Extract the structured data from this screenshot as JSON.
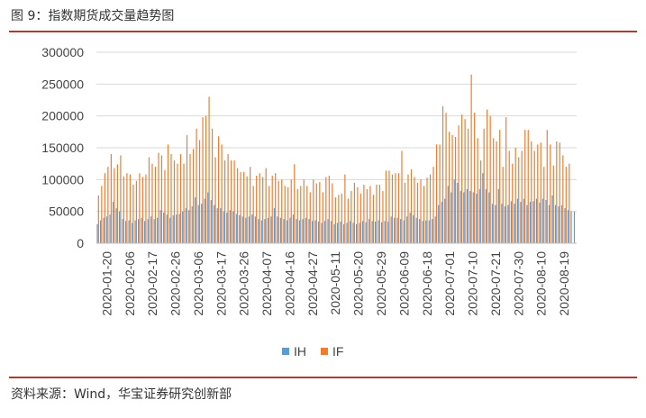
{
  "figure": {
    "title": "图 9：指数期货成交量趋势图",
    "source": "资料来源：Wind，华宝证券研究创新部"
  },
  "chart_data": {
    "type": "bar",
    "title": "",
    "xlabel": "",
    "ylabel": "",
    "ylim": [
      0,
      300000
    ],
    "yticks": [
      0,
      50000,
      100000,
      150000,
      200000,
      250000,
      300000
    ],
    "grid": true,
    "legend": "bottom-center",
    "x_tick_labels": [
      "2020-01-20",
      "2020-02-06",
      "2020-02-17",
      "2020-02-26",
      "2020-03-06",
      "2020-03-17",
      "2020-03-26",
      "2020-04-07",
      "2020-04-16",
      "2020-04-27",
      "2020-05-11",
      "2020-05-20",
      "2020-05-29",
      "2020-06-09",
      "2020-06-18",
      "2020-07-01",
      "2020-07-10",
      "2020-07-21",
      "2020-07-30",
      "2020-08-10",
      "2020-08-19"
    ],
    "series": [
      {
        "name": "IH",
        "color": "#5b9bd5",
        "values": [
          30000,
          36000,
          40000,
          42000,
          45000,
          65000,
          55000,
          50000,
          38000,
          35000,
          36000,
          32000,
          36000,
          38000,
          40000,
          35000,
          38000,
          42000,
          38000,
          40000,
          52000,
          48000,
          45000,
          40000,
          44000,
          45000,
          46000,
          50000,
          55000,
          52000,
          58000,
          72000,
          60000,
          62000,
          70000,
          80000,
          68000,
          60000,
          55000,
          55000,
          50000,
          48000,
          52000,
          50000,
          46000,
          44000,
          42000,
          40000,
          42000,
          45000,
          42000,
          38000,
          36000,
          38000,
          40000,
          42000,
          55000,
          42000,
          40000,
          38000,
          36000,
          40000,
          45000,
          38000,
          36000,
          38000,
          40000,
          38000,
          35000,
          36000,
          34000,
          32000,
          35000,
          38000,
          35000,
          30000,
          32000,
          34000,
          30000,
          32000,
          35000,
          32000,
          30000,
          32000,
          35000,
          33000,
          38000,
          35000,
          34000,
          36000,
          33000,
          35000,
          34000,
          42000,
          40000,
          40000,
          38000,
          36000,
          42000,
          48000,
          44000,
          40000,
          38000,
          35000,
          36000,
          36000,
          38000,
          42000,
          60000,
          65000,
          70000,
          90000,
          80000,
          100000,
          95000,
          82000,
          80000,
          85000,
          82000,
          80000,
          78000,
          85000,
          110000,
          85000,
          80000,
          62000,
          60000,
          85000,
          62000,
          58000,
          60000,
          66000,
          62000,
          70000,
          65000,
          70000,
          60000,
          65000,
          66000,
          70000,
          64000,
          70000,
          68000,
          60000,
          75000,
          60000,
          58000,
          60000,
          55000,
          52000,
          50000,
          50000
        ],
        "_note": "values estimated per trading day"
      },
      {
        "name": "IF",
        "color": "#ed7d31",
        "values": [
          75000,
          90000,
          110000,
          120000,
          140000,
          118000,
          124000,
          138000,
          105000,
          110000,
          108000,
          92000,
          98000,
          110000,
          104000,
          108000,
          135000,
          125000,
          120000,
          142000,
          138000,
          115000,
          155000,
          140000,
          130000,
          125000,
          140000,
          125000,
          170000,
          140000,
          148000,
          180000,
          162000,
          198000,
          200000,
          230000,
          180000,
          135000,
          168000,
          155000,
          130000,
          140000,
          130000,
          130000,
          118000,
          112000,
          112000,
          105000,
          120000,
          90000,
          106000,
          110000,
          104000,
          118000,
          90000,
          106000,
          110000,
          98000,
          100000,
          90000,
          88000,
          100000,
          124000,
          85000,
          90000,
          100000,
          90000,
          80000,
          100000,
          94000,
          96000,
          80000,
          104000,
          106000,
          94000,
          72000,
          76000,
          78000,
          108000,
          70000,
          82000,
          95000,
          88000,
          78000,
          92000,
          85000,
          90000,
          76000,
          92000,
          92000,
          82000,
          114000,
          114000,
          108000,
          110000,
          110000,
          145000,
          95000,
          108000,
          116000,
          104000,
          95000,
          100000,
          90000,
          103000,
          108000,
          120000,
          155000,
          155000,
          215000,
          205000,
          175000,
          170000,
          167000,
          185000,
          202000,
          195000,
          180000,
          265000,
          205000,
          165000,
          130000,
          180000,
          210000,
          200000,
          165000,
          160000,
          178000,
          120000,
          198000,
          145000,
          125000,
          150000,
          135000,
          145000,
          178000,
          178000,
          160000,
          145000,
          155000,
          158000,
          120000,
          178000,
          155000,
          122000,
          160000,
          158000,
          138000,
          120000,
          125000
        ]
      }
    ]
  }
}
